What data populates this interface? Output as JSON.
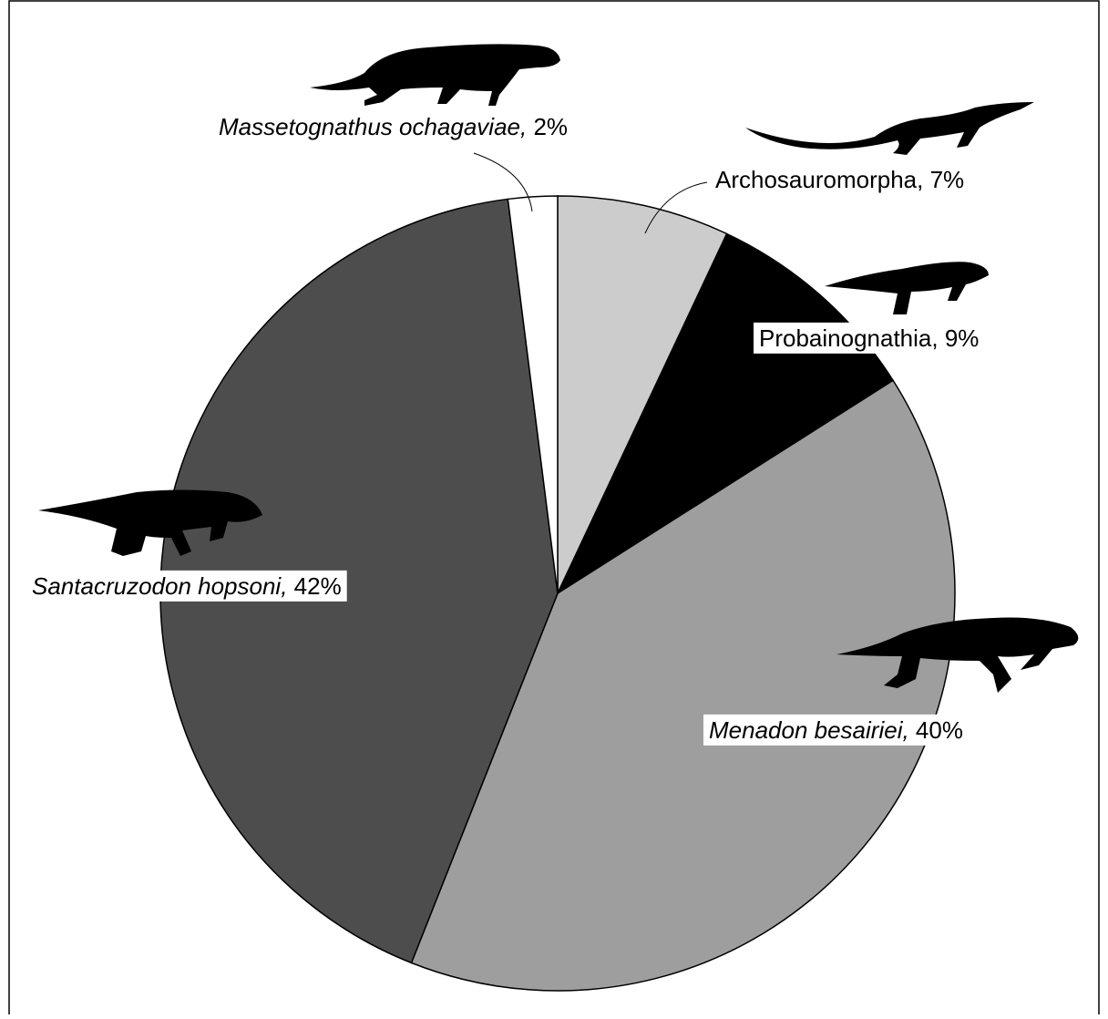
{
  "chart_data": {
    "type": "pie",
    "categories": [
      "Archosauromorpha",
      "Probainognathia",
      "Menadon besairiei",
      "Santacruzodon hopsoni",
      "Massetognathus ochagaviae"
    ],
    "values": [
      7,
      9,
      40,
      42,
      2
    ],
    "value_labels": [
      "7%",
      "9%",
      "40%",
      "42%",
      "2%"
    ],
    "label_separator": ", ",
    "italic": [
      false,
      false,
      true,
      true,
      true
    ],
    "colors": [
      "#cccccc",
      "#000000",
      "#9e9e9e",
      "#4d4d4d",
      "#ffffff"
    ]
  }
}
